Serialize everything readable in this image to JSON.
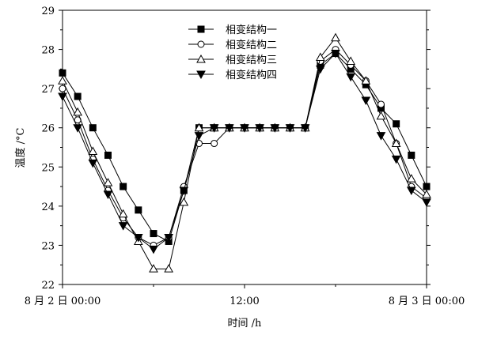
{
  "chart_data": {
    "type": "line",
    "xlabel": "时间 /h",
    "ylabel": "温度 /°C",
    "ylim": [
      22,
      29
    ],
    "xlim": [
      0,
      24
    ],
    "yticks": [
      22,
      23,
      24,
      25,
      26,
      27,
      28,
      29
    ],
    "xticks": [
      {
        "x": 0,
        "label": "8 月 2 日 00:00"
      },
      {
        "x": 12,
        "label": "12:00"
      },
      {
        "x": 24,
        "label": "8 月 3 日 00:00"
      }
    ],
    "grid": false,
    "legend_position": "top-center",
    "x": [
      0,
      1,
      2,
      3,
      4,
      5,
      6,
      7,
      8,
      9,
      10,
      11,
      12,
      13,
      14,
      15,
      16,
      17,
      18,
      19,
      20,
      21,
      22,
      23,
      24
    ],
    "series": [
      {
        "name": "相变结构一",
        "marker": "square-filled",
        "values": [
          27.4,
          26.8,
          26.0,
          25.3,
          24.5,
          23.9,
          23.3,
          23.1,
          24.4,
          26.0,
          26.0,
          26.0,
          26.0,
          26.0,
          26.0,
          26.0,
          26.0,
          27.6,
          27.9,
          27.5,
          27.1,
          26.5,
          26.1,
          25.3,
          24.5
        ]
      },
      {
        "name": "相变结构二",
        "marker": "circle-open",
        "values": [
          27.0,
          26.2,
          25.2,
          24.4,
          23.7,
          23.2,
          23.0,
          23.2,
          24.5,
          25.6,
          25.6,
          26.0,
          26.0,
          26.0,
          26.0,
          26.0,
          26.0,
          27.7,
          28.0,
          27.6,
          27.2,
          26.6,
          25.6,
          24.5,
          24.2
        ]
      },
      {
        "name": "相变结构三",
        "marker": "triangle-up-open",
        "values": [
          27.2,
          26.4,
          25.4,
          24.6,
          23.8,
          23.1,
          22.4,
          22.4,
          24.1,
          26.0,
          26.0,
          26.0,
          26.0,
          26.0,
          26.0,
          26.0,
          26.0,
          27.8,
          28.3,
          27.7,
          27.2,
          26.3,
          25.6,
          24.7,
          24.3
        ]
      },
      {
        "name": "相变结构四",
        "marker": "triangle-down-filled",
        "values": [
          26.8,
          26.0,
          25.1,
          24.3,
          23.5,
          23.2,
          22.9,
          23.2,
          24.4,
          25.8,
          26.0,
          26.0,
          26.0,
          26.0,
          26.0,
          26.0,
          26.0,
          27.5,
          27.9,
          27.3,
          26.7,
          25.8,
          25.2,
          24.4,
          24.1
        ]
      }
    ]
  }
}
